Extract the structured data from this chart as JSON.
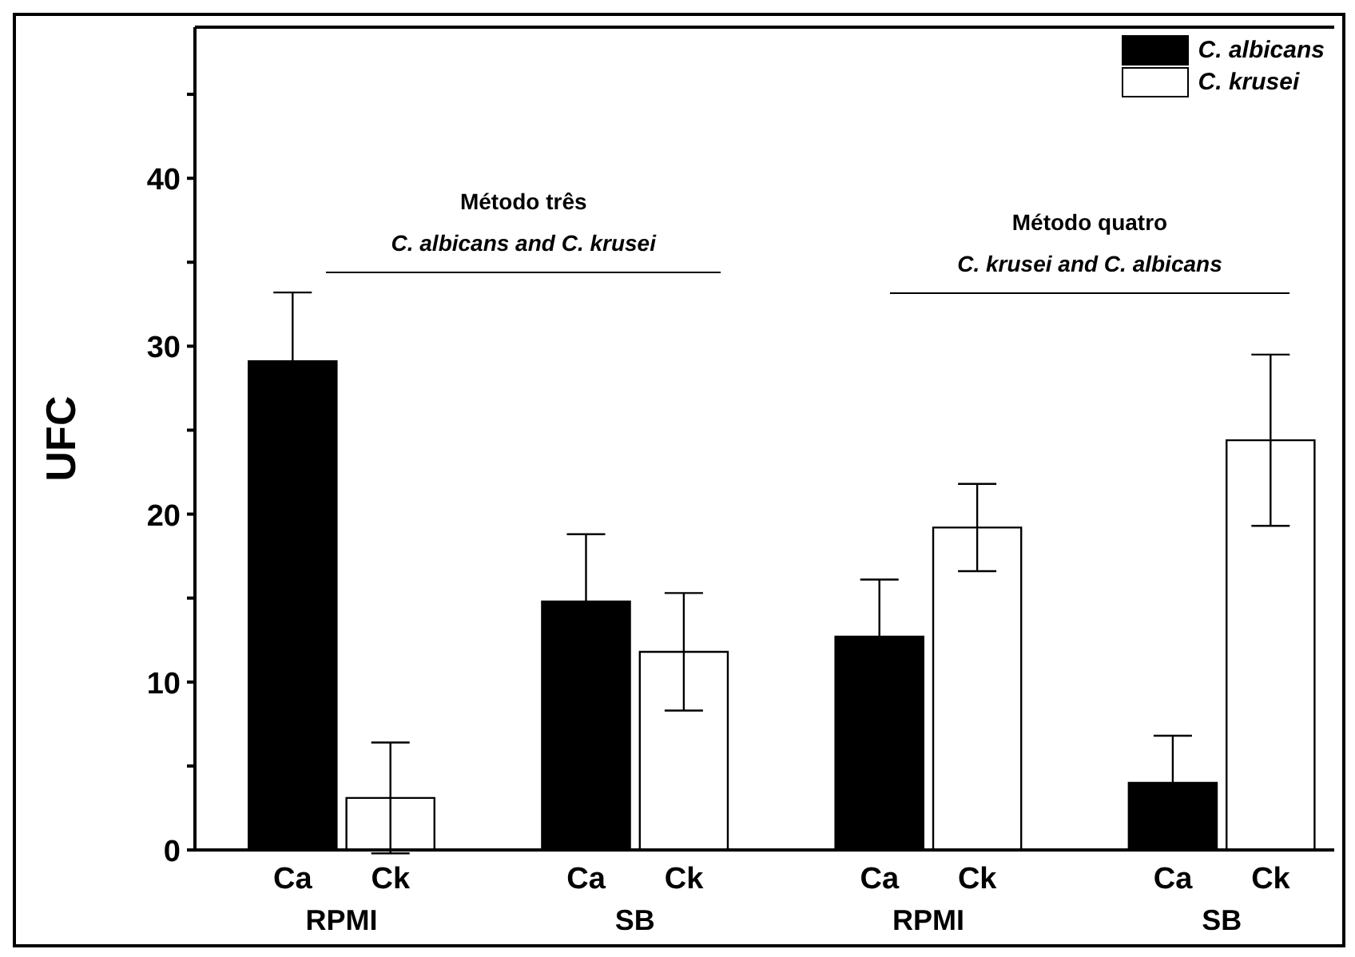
{
  "chart_data": {
    "type": "bar",
    "ylabel": "UFC",
    "categories": [
      "Ca",
      "Ck",
      "Ca",
      "Ck",
      "Ca",
      "Ck",
      "Ca",
      "Ck"
    ],
    "series": [
      {
        "name": "C. albicans",
        "color": "#000000",
        "values": [
          29.1,
          null,
          14.8,
          null,
          12.7,
          null,
          4.0,
          null
        ],
        "errors": [
          4.1,
          null,
          4.0,
          null,
          3.4,
          null,
          2.8,
          null
        ]
      },
      {
        "name": "C. krusei",
        "color": "#ffffff",
        "values": [
          null,
          3.1,
          null,
          11.8,
          null,
          19.2,
          null,
          24.4
        ],
        "errors": [
          null,
          3.3,
          null,
          3.5,
          null,
          2.6,
          null,
          5.1
        ]
      }
    ],
    "ylim": [
      0,
      49
    ],
    "yticks": [
      0,
      {
        "value": 5,
        "label": null
      },
      10,
      {
        "value": 15,
        "label": null
      },
      20,
      {
        "value": 25,
        "label": null
      },
      30,
      {
        "value": 35,
        "label": null
      },
      40,
      {
        "value": 45,
        "label": null
      }
    ],
    "annotations": [
      "Método três",
      "C. albicans and C. krusei",
      "Método quatro",
      "C. krusei and C. albicans",
      "RPMI",
      "SB",
      "RPMI",
      "SB"
    ],
    "legend": "top right"
  }
}
